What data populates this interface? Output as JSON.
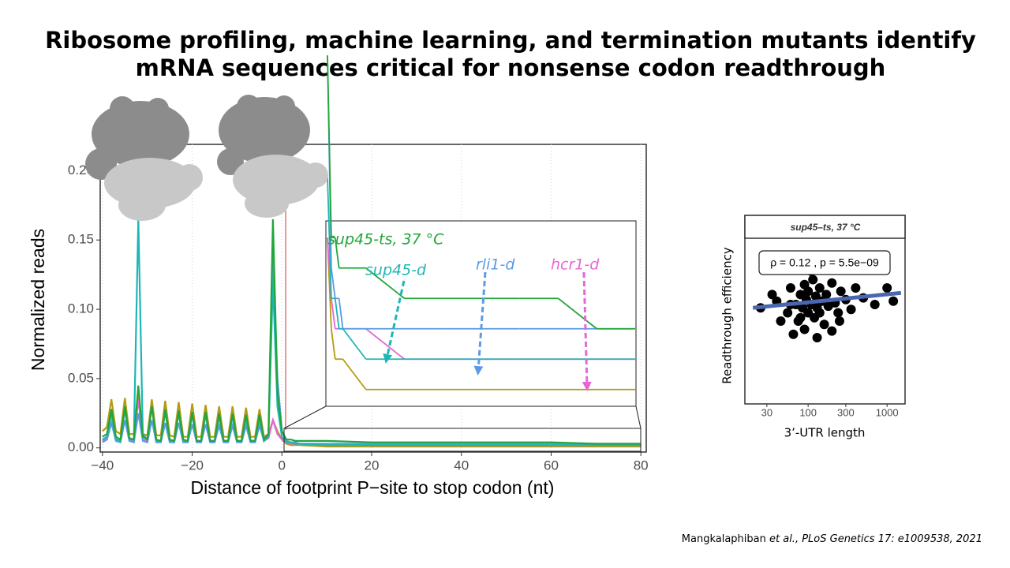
{
  "title": [
    "Ribosome profiling, machine learning, and termination mutants identify",
    "mRNA sequences critical for nonsense codon readthrough"
  ],
  "chart_data": [
    {
      "type": "line",
      "x_label": "Distance of footprint P−site to stop codon (nt)",
      "y_label": "Normalized reads",
      "x": [
        -40,
        -39,
        -38,
        -37,
        -36,
        -35,
        -34,
        -33,
        -32,
        -31,
        -30,
        -29,
        -28,
        -27,
        -26,
        -25,
        -24,
        -23,
        -22,
        -21,
        -20,
        -19,
        -18,
        -17,
        -16,
        -15,
        -14,
        -13,
        -12,
        -11,
        -10,
        -9,
        -8,
        -7,
        -6,
        -5,
        -4,
        -3,
        -2,
        -1,
        0,
        1,
        2,
        3,
        4,
        10,
        20,
        30,
        40,
        50,
        60,
        70,
        80
      ],
      "series": [
        {
          "color": "#b59a10",
          "values": [
            0.012,
            0.015,
            0.035,
            0.012,
            0.01,
            0.036,
            0.01,
            0.01,
            0.038,
            0.01,
            0.009,
            0.035,
            0.009,
            0.009,
            0.034,
            0.009,
            0.008,
            0.033,
            0.008,
            0.008,
            0.032,
            0.008,
            0.008,
            0.031,
            0.008,
            0.008,
            0.03,
            0.008,
            0.008,
            0.03,
            0.008,
            0.008,
            0.029,
            0.008,
            0.008,
            0.028,
            0.008,
            0.01,
            0.02,
            0.012,
            0.006,
            0.003,
            0.002,
            0.002,
            0.002,
            0.001,
            0.001,
            0.001,
            0.001,
            0.001,
            0.001,
            0.001,
            0.001
          ]
        },
        {
          "name": "hcr1-d",
          "color": "#e766d6",
          "values": [
            0.005,
            0.007,
            0.025,
            0.006,
            0.005,
            0.028,
            0.005,
            0.005,
            0.035,
            0.006,
            0.005,
            0.03,
            0.005,
            0.005,
            0.028,
            0.005,
            0.005,
            0.026,
            0.005,
            0.005,
            0.026,
            0.005,
            0.005,
            0.025,
            0.005,
            0.005,
            0.025,
            0.005,
            0.005,
            0.024,
            0.005,
            0.005,
            0.024,
            0.005,
            0.005,
            0.024,
            0.005,
            0.007,
            0.02,
            0.01,
            0.006,
            0.004,
            0.003,
            0.003,
            0.003,
            0.003,
            0.002,
            0.002,
            0.002,
            0.002,
            0.002,
            0.002,
            0.002
          ]
        },
        {
          "name": "rli1-d",
          "color": "#5b9be6",
          "values": [
            0.004,
            0.006,
            0.018,
            0.005,
            0.004,
            0.02,
            0.005,
            0.004,
            0.025,
            0.005,
            0.004,
            0.02,
            0.004,
            0.004,
            0.018,
            0.004,
            0.004,
            0.018,
            0.004,
            0.004,
            0.017,
            0.004,
            0.004,
            0.017,
            0.004,
            0.004,
            0.016,
            0.004,
            0.004,
            0.016,
            0.004,
            0.004,
            0.016,
            0.004,
            0.004,
            0.016,
            0.005,
            0.01,
            0.14,
            0.05,
            0.012,
            0.005,
            0.004,
            0.004,
            0.003,
            0.003,
            0.003,
            0.003,
            0.003,
            0.003,
            0.003,
            0.003,
            0.003
          ]
        },
        {
          "name": "sup45-d",
          "color": "#1fb5b5",
          "values": [
            0.006,
            0.008,
            0.025,
            0.006,
            0.005,
            0.028,
            0.006,
            0.006,
            0.165,
            0.01,
            0.006,
            0.03,
            0.005,
            0.005,
            0.026,
            0.005,
            0.005,
            0.025,
            0.005,
            0.005,
            0.024,
            0.005,
            0.005,
            0.024,
            0.005,
            0.005,
            0.023,
            0.005,
            0.005,
            0.023,
            0.005,
            0.005,
            0.022,
            0.005,
            0.005,
            0.022,
            0.005,
            0.008,
            0.12,
            0.03,
            0.008,
            0.004,
            0.004,
            0.003,
            0.003,
            0.002,
            0.002,
            0.002,
            0.002,
            0.002,
            0.002,
            0.002,
            0.002
          ]
        },
        {
          "name": "sup45-ts, 37 °C",
          "color": "#22a63a",
          "values": [
            0.008,
            0.01,
            0.028,
            0.008,
            0.006,
            0.03,
            0.007,
            0.006,
            0.045,
            0.008,
            0.006,
            0.03,
            0.006,
            0.005,
            0.028,
            0.006,
            0.005,
            0.027,
            0.006,
            0.005,
            0.026,
            0.005,
            0.005,
            0.026,
            0.005,
            0.005,
            0.025,
            0.005,
            0.005,
            0.025,
            0.005,
            0.005,
            0.024,
            0.005,
            0.005,
            0.024,
            0.006,
            0.01,
            0.165,
            0.04,
            0.012,
            0.006,
            0.006,
            0.005,
            0.005,
            0.005,
            0.004,
            0.004,
            0.004,
            0.004,
            0.004,
            0.003,
            0.003
          ]
        }
      ],
      "xlim": [
        -40.5,
        81.2
      ],
      "ylim": [
        -0.003,
        0.219
      ],
      "xticks": [
        {
          "value": -40,
          "label": "−40"
        },
        {
          "value": -20,
          "label": "−20"
        },
        0,
        20,
        40,
        60,
        80
      ],
      "yticks": [
        {
          "value": 0,
          "label": "0.00"
        },
        {
          "value": 0.05,
          "label": "0.05"
        },
        {
          "value": 0.1,
          "label": "0.10"
        },
        {
          "value": 0.15,
          "label": "0.15"
        },
        {
          "value": 0.2,
          "label": "0.20"
        }
      ],
      "grid": true
    },
    {
      "type": "inset",
      "xlim": [
        0,
        80
      ],
      "ylim": [
        0.0005,
        0.0065
      ]
    },
    {
      "type": "scatter",
      "title": "sup45–ts, 37 °C",
      "annotation": "ρ = 0.12 , p = 5.5e−09",
      "x_label": "3’-UTR length",
      "y_label": "Readthrough efficiency",
      "x": [
        40,
        55,
        60,
        70,
        75,
        80,
        85,
        90,
        95,
        100,
        100,
        110,
        115,
        120,
        125,
        130,
        140,
        150,
        160,
        170,
        180,
        200,
        220,
        240,
        260,
        300,
        350,
        400,
        500,
        700,
        1200,
        25,
        35,
        65,
        90,
        130,
        200,
        110,
        150,
        60,
        80,
        250,
        45,
        1000,
        140
      ],
      "y": [
        0.62,
        0.55,
        0.7,
        0.6,
        0.5,
        0.66,
        0.58,
        0.72,
        0.63,
        0.55,
        0.68,
        0.6,
        0.75,
        0.52,
        0.65,
        0.58,
        0.7,
        0.62,
        0.48,
        0.66,
        0.59,
        0.73,
        0.61,
        0.55,
        0.68,
        0.63,
        0.57,
        0.7,
        0.64,
        0.6,
        0.62,
        0.58,
        0.66,
        0.42,
        0.45,
        0.4,
        0.44,
        0.8,
        0.82,
        0.6,
        0.52,
        0.5,
        0.5,
        0.7,
        0.55
      ],
      "color": "#000000",
      "xlim": [
        15.8,
        1690
      ],
      "ylim": [
        0,
        1
      ],
      "xticks": [
        30,
        100,
        300,
        1000
      ],
      "log_x": true,
      "trend_line": {
        "x": [
          20,
          1500
        ],
        "y": [
          0.58,
          0.67
        ],
        "color": "#4a66b0"
      }
    }
  ],
  "citation": {
    "authors": "Mangkalaphiban",
    "rest": "et al., PLoS Genetics 17: e1009538, 2021"
  }
}
